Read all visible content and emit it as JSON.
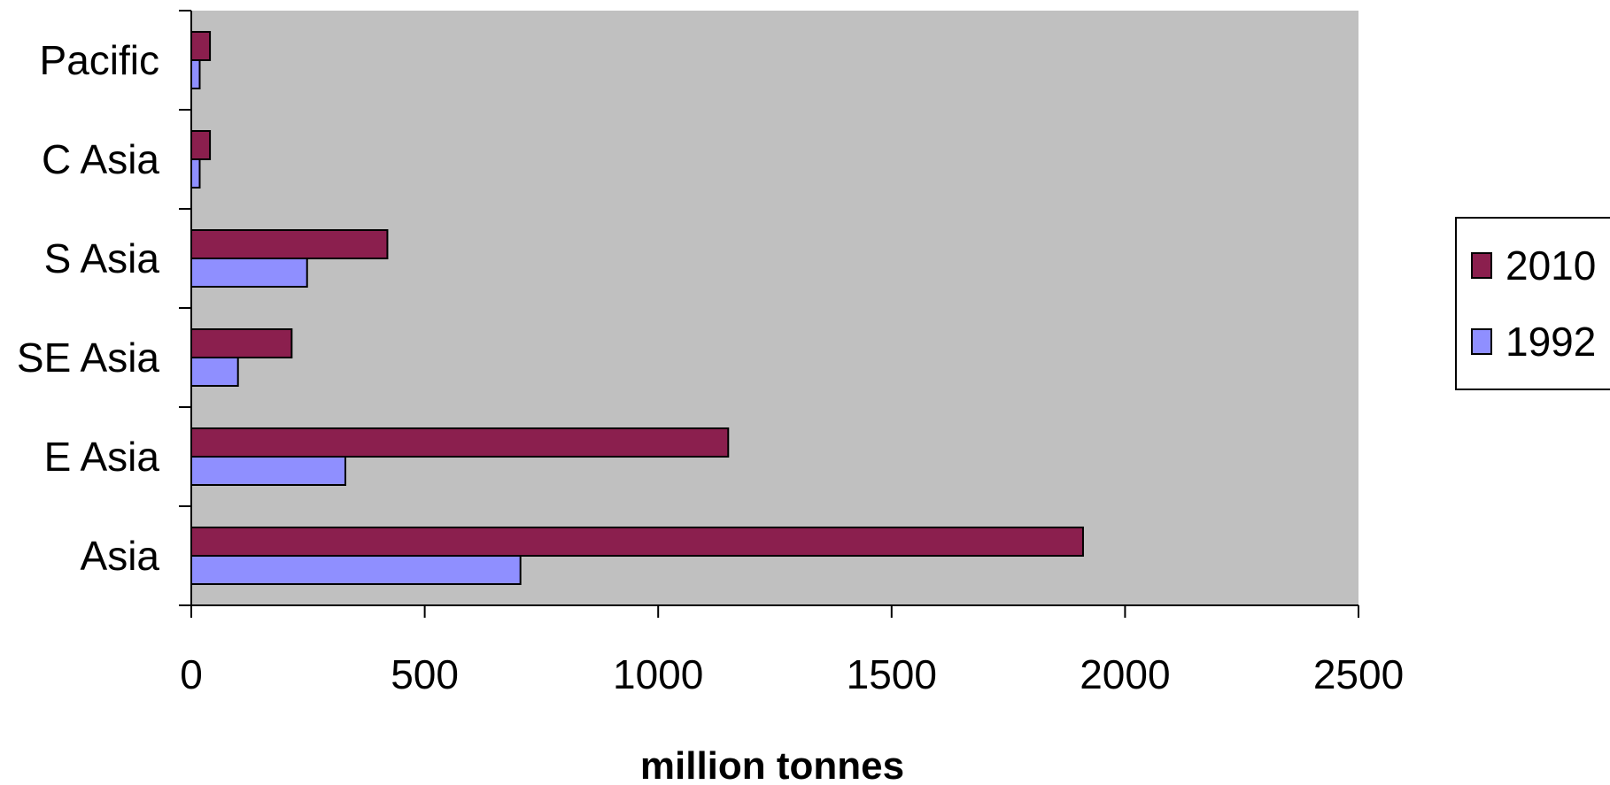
{
  "chart_data": {
    "type": "bar",
    "orientation": "horizontal",
    "categories": [
      "Asia",
      "E Asia",
      "SE Asia",
      "S Asia",
      "C Asia",
      "Pacific"
    ],
    "series": [
      {
        "name": "2010",
        "color": "#8b1f4e",
        "values": [
          1910,
          1150,
          215,
          420,
          40,
          40
        ]
      },
      {
        "name": "1992",
        "color": "#8f8fff",
        "values": [
          705,
          330,
          100,
          248,
          18,
          18
        ]
      }
    ],
    "xlabel": "million tonnes",
    "ylabel": "",
    "title": "",
    "xlim": [
      0,
      2500
    ],
    "xticks": [
      0,
      500,
      1000,
      1500,
      2000,
      2500
    ],
    "grid": false,
    "plot_background": "#c0c0c0",
    "legend_position": "right"
  }
}
